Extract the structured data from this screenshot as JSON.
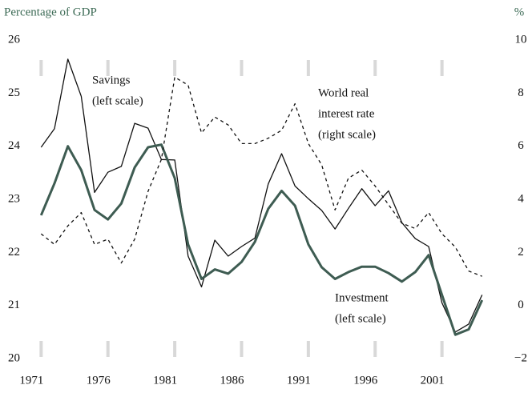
{
  "chart_data": {
    "type": "line",
    "left_axis_title": "Percentage of GDP",
    "right_axis_title": "%",
    "x": [
      1971,
      1972,
      1973,
      1974,
      1975,
      1976,
      1977,
      1978,
      1979,
      1980,
      1981,
      1982,
      1983,
      1984,
      1985,
      1986,
      1987,
      1988,
      1989,
      1990,
      1991,
      1992,
      1993,
      1994,
      1995,
      1996,
      1997,
      1998,
      1999,
      2000,
      2001,
      2002,
      2003,
      2004
    ],
    "series": [
      {
        "name": "Savings",
        "color": "#111111",
        "style": "solid",
        "width": 1.3,
        "values": [
          23.98,
          24.33,
          25.64,
          24.94,
          23.13,
          23.51,
          23.62,
          24.43,
          24.34,
          23.75,
          23.74,
          21.93,
          21.35,
          22.23,
          21.93,
          22.11,
          22.27,
          23.29,
          23.86,
          23.25,
          23.01,
          22.79,
          22.44,
          22.83,
          23.2,
          22.88,
          23.16,
          22.56,
          22.26,
          22.11,
          21.05,
          20.5,
          20.65,
          21.2
        ]
      },
      {
        "name": "Investment",
        "color": "#3e5c52",
        "style": "solid",
        "width": 3,
        "values": [
          22.7,
          23.3,
          24.0,
          23.55,
          22.8,
          22.62,
          22.92,
          23.6,
          23.98,
          24.03,
          23.4,
          22.15,
          21.5,
          21.68,
          21.6,
          21.82,
          22.2,
          22.82,
          23.16,
          22.88,
          22.15,
          21.72,
          21.5,
          21.63,
          21.73,
          21.73,
          21.61,
          21.45,
          21.63,
          21.95,
          21.2,
          20.45,
          20.55,
          21.1
        ]
      },
      {
        "name": "World real interest rate",
        "color": "#111111",
        "style": "dashed",
        "width": 1.3,
        "axis": "y2",
        "values": [
          2.7,
          2.3,
          3.0,
          3.5,
          2.3,
          2.5,
          1.6,
          2.5,
          4.3,
          5.5,
          8.6,
          8.3,
          6.5,
          7.1,
          6.8,
          6.1,
          6.1,
          6.3,
          6.6,
          7.6,
          6.1,
          5.3,
          3.6,
          4.8,
          5.1,
          4.5,
          3.8,
          3.1,
          2.9,
          3.5,
          2.7,
          2.2,
          1.3,
          1.1
        ]
      }
    ],
    "annotations": [
      {
        "lines": [
          "Savings",
          "(left scale)"
        ]
      },
      {
        "lines": [
          "World real",
          "interest rate",
          "(right scale)"
        ]
      },
      {
        "lines": [
          "Investment",
          "(left scale)"
        ]
      }
    ],
    "xlim": [
      1970.2,
      2005.1
    ],
    "xticks": [
      1971,
      1976,
      1981,
      1986,
      1991,
      1996,
      2001
    ],
    "ylim": [
      20,
      26
    ],
    "yticks": [
      20,
      21,
      22,
      23,
      24,
      25,
      26
    ],
    "y2lim": [
      -2,
      10
    ],
    "y2ticks": [
      {
        "value": -2,
        "label": "−2"
      },
      0,
      2,
      4,
      6,
      8,
      10
    ]
  }
}
